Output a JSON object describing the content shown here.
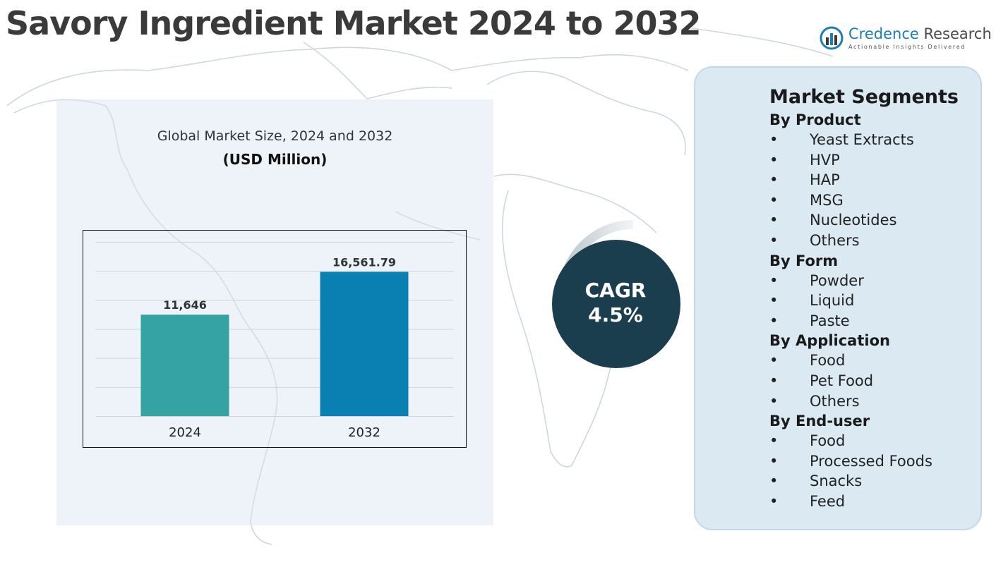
{
  "title": "Savory Ingredient Market 2024 to 2032",
  "logo": {
    "name_part1": "Credence",
    "name_part2": " Research",
    "tagline": "Actionable Insights Delivered"
  },
  "chart_header": {
    "subtitle": "Global Market Size, 2024 and 2032",
    "unit": "(USD Million)"
  },
  "chart_data": {
    "type": "bar",
    "title": "Global Market Size, 2024 and 2032",
    "ylabel": "USD Million",
    "xlabel": "",
    "categories": [
      "2024",
      "2032"
    ],
    "values": [
      11646,
      16561.79
    ],
    "value_labels": [
      "11,646",
      "16,561.79"
    ],
    "ylim": [
      0,
      20000
    ],
    "grid": true,
    "colors": [
      "#35a2a3",
      "#0a80b2"
    ]
  },
  "cagr": {
    "label": "CAGR",
    "value": "4.5%"
  },
  "segments": {
    "title": "Market Segments",
    "bullet": "•",
    "groups": [
      {
        "title": "By Product",
        "items": [
          "Yeast Extracts",
          "HVP",
          "HAP",
          "MSG",
          "Nucleotides",
          "Others"
        ]
      },
      {
        "title": "By Form",
        "items": [
          "Powder",
          "Liquid",
          "Paste"
        ]
      },
      {
        "title": "By Application",
        "items": [
          "Food",
          "Pet Food",
          "Others"
        ]
      },
      {
        "title": "By End-user",
        "items": [
          "Food",
          "Processed Foods",
          "Snacks",
          "Feed"
        ]
      }
    ]
  },
  "colors": {
    "cagr_circle": "#1b3e4f",
    "panel": "#dbe9f3",
    "accent": "#1b7fb6"
  }
}
